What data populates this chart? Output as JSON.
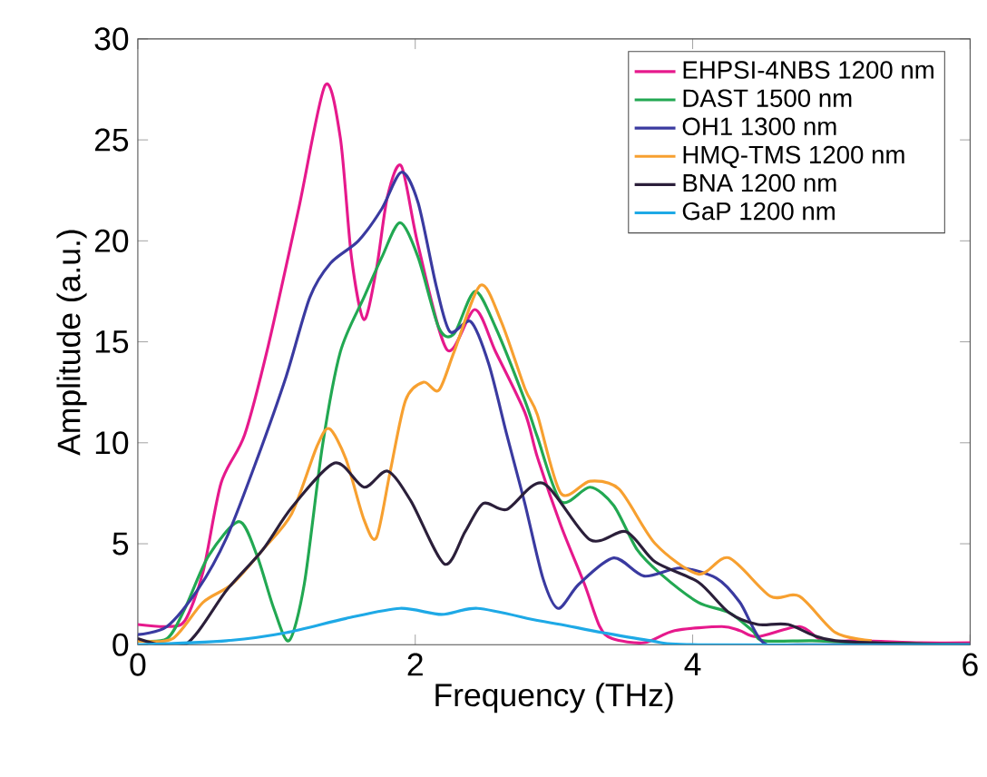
{
  "chart_data": {
    "type": "line",
    "xlabel": "Frequency (THz)",
    "ylabel": "Amplitude (a.u.)",
    "xlim": [
      0,
      6
    ],
    "ylim": [
      0,
      30
    ],
    "xticks": [
      0,
      2,
      4,
      6
    ],
    "yticks": [
      0,
      5,
      10,
      15,
      20,
      25,
      30
    ],
    "grid": false,
    "legend": "top right",
    "marker": "none",
    "line_style": "solid",
    "series": [
      {
        "name": "EHPSI-4NBS 1200 nm",
        "color": "#e6198c",
        "x": [
          0,
          0.21,
          0.34,
          0.47,
          0.6,
          0.77,
          0.94,
          1.16,
          1.35,
          1.46,
          1.54,
          1.63,
          1.72,
          1.8,
          1.9,
          2.02,
          2.23,
          2.43,
          2.58,
          2.79,
          2.88,
          3.05,
          3.22,
          3.33,
          3.42,
          3.65,
          3.87,
          4.21,
          4.34,
          4.47,
          4.77,
          4.94,
          5.2,
          5.63,
          6
        ],
        "values": [
          1.0,
          0.9,
          1.2,
          3.6,
          8.0,
          10.4,
          14.8,
          21.6,
          27.7,
          25.1,
          19.2,
          16.1,
          18.6,
          22.2,
          23.7,
          19.8,
          14.6,
          16.6,
          14.5,
          11.5,
          9.3,
          5.9,
          3.0,
          0.9,
          0.3,
          0.1,
          0.7,
          0.9,
          0.7,
          0.4,
          0.9,
          0.2,
          0.2,
          0.1,
          0.1
        ]
      },
      {
        "name": "DAST 1500 nm",
        "color": "#22a852",
        "x": [
          0,
          0.21,
          0.34,
          0.51,
          0.73,
          0.86,
          0.98,
          1.09,
          1.2,
          1.33,
          1.46,
          1.63,
          1.76,
          1.89,
          2.02,
          2.17,
          2.28,
          2.43,
          2.58,
          2.79,
          2.88,
          3.05,
          3.26,
          3.43,
          3.6,
          3.77,
          4.04,
          4.26,
          4.43,
          4.51,
          4.86,
          5.2,
          6
        ],
        "values": [
          0.2,
          0.3,
          1.8,
          4.4,
          6.1,
          4.4,
          1.8,
          0.2,
          3.0,
          9.8,
          14.5,
          17.2,
          19.2,
          20.9,
          19.2,
          15.7,
          15.4,
          17.5,
          15.7,
          12.1,
          10.3,
          7.1,
          7.8,
          6.9,
          4.7,
          3.5,
          2.1,
          1.6,
          0.7,
          0.2,
          0.2,
          0.1,
          0
        ]
      },
      {
        "name": "OH1 1300 nm",
        "color": "#3a3aa0",
        "x": [
          0,
          0.21,
          0.43,
          0.64,
          0.86,
          1.07,
          1.24,
          1.39,
          1.59,
          1.76,
          1.9,
          2.02,
          2.15,
          2.25,
          2.4,
          2.53,
          2.66,
          2.79,
          2.92,
          3.03,
          3.18,
          3.43,
          3.65,
          3.91,
          4.17,
          4.34,
          4.51,
          4.77,
          6
        ],
        "values": [
          0.5,
          0.9,
          2.7,
          5.3,
          9.2,
          13.3,
          17.2,
          18.9,
          20.0,
          21.6,
          23.4,
          21.9,
          17.8,
          15.5,
          16.0,
          13.9,
          10.4,
          7.0,
          3.3,
          1.8,
          3.0,
          4.3,
          3.4,
          3.8,
          3.3,
          2.1,
          0.1,
          0,
          0
        ]
      },
      {
        "name": "HMQ-TMS 1200 nm",
        "color": "#f7a030",
        "x": [
          0,
          0.25,
          0.47,
          0.68,
          0.9,
          1.11,
          1.29,
          1.38,
          1.5,
          1.63,
          1.72,
          1.82,
          1.93,
          2.06,
          2.17,
          2.28,
          2.47,
          2.62,
          2.79,
          2.88,
          3.05,
          3.26,
          3.47,
          3.73,
          4.04,
          4.26,
          4.56,
          4.77,
          5.03,
          5.29
        ],
        "values": [
          0.2,
          0.3,
          2.1,
          3.0,
          4.7,
          6.5,
          9.8,
          10.7,
          9.2,
          6.2,
          5.3,
          8.6,
          12.1,
          13.0,
          12.6,
          14.5,
          17.8,
          16.0,
          12.7,
          11.4,
          7.5,
          8.1,
          7.7,
          5.0,
          3.5,
          4.3,
          2.4,
          2.4,
          0.6,
          0.2
        ]
      },
      {
        "name": "BNA 1200 nm",
        "color": "#2b1f3a",
        "x": [
          0,
          0.34,
          0.64,
          0.9,
          1.11,
          1.42,
          1.63,
          1.8,
          1.97,
          2.21,
          2.36,
          2.49,
          2.66,
          2.92,
          3.26,
          3.52,
          3.73,
          4.04,
          4.26,
          4.47,
          4.69,
          5.03,
          6
        ],
        "values": [
          0.3,
          0,
          2.7,
          4.7,
          6.8,
          9.0,
          7.8,
          8.6,
          7.1,
          4.0,
          5.6,
          7.0,
          6.7,
          8.0,
          5.2,
          5.6,
          4.1,
          3.1,
          1.6,
          1.0,
          1.0,
          0.2,
          0
        ]
      },
      {
        "name": "GaP 1200 nm",
        "color": "#1ea9e6",
        "x": [
          0,
          0.64,
          1.07,
          1.5,
          1.89,
          2.19,
          2.45,
          2.88,
          3.05,
          3.35,
          3.7,
          4.04,
          6
        ],
        "values": [
          0,
          0.2,
          0.6,
          1.3,
          1.8,
          1.5,
          1.8,
          1.2,
          1.0,
          0.6,
          0.2,
          0,
          0
        ]
      }
    ]
  }
}
